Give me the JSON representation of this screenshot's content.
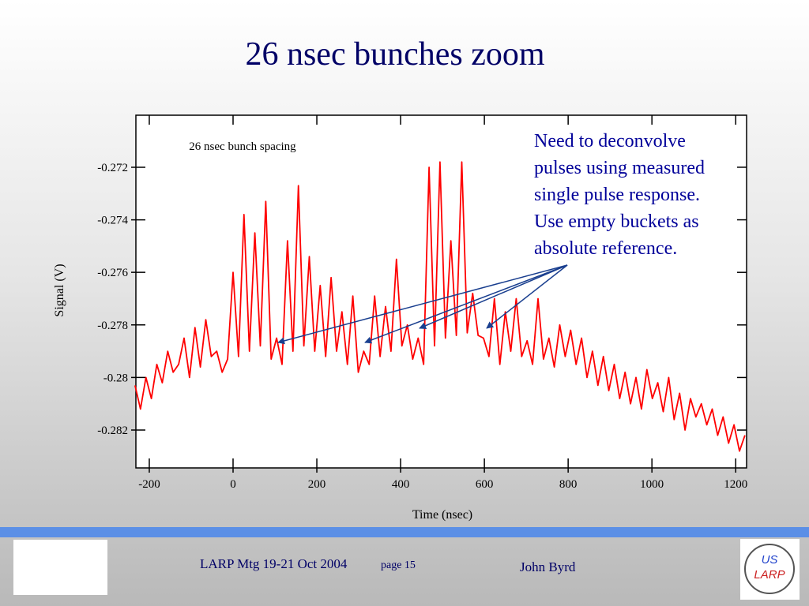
{
  "slide": {
    "title": "26 nsec bunches zoom",
    "footer_meeting": "LARP Mtg 19-21 Oct 2004",
    "footer_page": "page 15",
    "footer_author": "John Byrd",
    "logo_top": "US",
    "logo_bottom": "LARP"
  },
  "chart_data": {
    "type": "line",
    "xlabel": "Time (nsec)",
    "ylabel": "Signal (V)",
    "annotation": "26 nsec bunch spacing",
    "note_lines": [
      "Need to deconvolve",
      "pulses using measured",
      "single pulse response.",
      "Use empty buckets as",
      "absolute reference."
    ],
    "xlim": [
      -232,
      1226
    ],
    "ylim": [
      -0.28344,
      -0.27002
    ],
    "xticks": [
      -200,
      0,
      200,
      400,
      600,
      800,
      1000,
      1200
    ],
    "yticks": [
      -0.272,
      -0.274,
      -0.276,
      -0.278,
      -0.28,
      -0.282
    ],
    "x": [
      -234,
      -221,
      -208,
      -195,
      -182,
      -169,
      -156,
      -143,
      -130,
      -117,
      -104,
      -91,
      -78,
      -65,
      -52,
      -39,
      -26,
      -13,
      0,
      13,
      26,
      39,
      52,
      65,
      78,
      91,
      104,
      117,
      130,
      143,
      156,
      169,
      182,
      195,
      208,
      221,
      234,
      247,
      260,
      273,
      286,
      299,
      312,
      325,
      338,
      351,
      364,
      377,
      390,
      403,
      416,
      429,
      442,
      455,
      468,
      481,
      494,
      507,
      520,
      533,
      546,
      559,
      572,
      585,
      598,
      611,
      624,
      637,
      650,
      663,
      676,
      689,
      702,
      715,
      728,
      741,
      754,
      767,
      780,
      793,
      806,
      819,
      832,
      845,
      858,
      871,
      884,
      897,
      910,
      923,
      936,
      949,
      962,
      975,
      988,
      1001,
      1014,
      1027,
      1040,
      1053,
      1066,
      1079,
      1092,
      1105,
      1118,
      1131,
      1144,
      1157,
      1170,
      1183,
      1196,
      1209,
      1222
    ],
    "series": [
      {
        "name": "Signal",
        "color": "#ff0000",
        "values": [
          -0.2803,
          -0.2812,
          -0.28,
          -0.2808,
          -0.2795,
          -0.2802,
          -0.279,
          -0.2798,
          -0.2795,
          -0.2785,
          -0.28,
          -0.2781,
          -0.2796,
          -0.2778,
          -0.2792,
          -0.279,
          -0.2798,
          -0.2793,
          -0.276,
          -0.2792,
          -0.2738,
          -0.279,
          -0.2745,
          -0.2788,
          -0.2733,
          -0.2793,
          -0.2785,
          -0.2795,
          -0.2748,
          -0.279,
          -0.2727,
          -0.2788,
          -0.2754,
          -0.279,
          -0.2765,
          -0.2792,
          -0.2762,
          -0.279,
          -0.2775,
          -0.2795,
          -0.2769,
          -0.2798,
          -0.279,
          -0.2795,
          -0.2769,
          -0.2792,
          -0.2773,
          -0.279,
          -0.2755,
          -0.2788,
          -0.278,
          -0.2793,
          -0.2785,
          -0.2795,
          -0.272,
          -0.2788,
          -0.2718,
          -0.2785,
          -0.2748,
          -0.2784,
          -0.2718,
          -0.2783,
          -0.2768,
          -0.2784,
          -0.2785,
          -0.2792,
          -0.277,
          -0.2795,
          -0.2775,
          -0.279,
          -0.277,
          -0.2792,
          -0.2786,
          -0.2795,
          -0.277,
          -0.2793,
          -0.2785,
          -0.2796,
          -0.278,
          -0.2792,
          -0.2782,
          -0.2795,
          -0.2785,
          -0.28,
          -0.279,
          -0.2803,
          -0.2792,
          -0.2805,
          -0.2795,
          -0.2808,
          -0.2798,
          -0.281,
          -0.28,
          -0.2812,
          -0.2797,
          -0.2808,
          -0.2802,
          -0.2813,
          -0.28,
          -0.2816,
          -0.2806,
          -0.282,
          -0.2808,
          -0.2815,
          -0.281,
          -0.2818,
          -0.2812,
          -0.2822,
          -0.2815,
          -0.2825,
          -0.2818,
          -0.2828,
          -0.2822
        ]
      }
    ]
  }
}
